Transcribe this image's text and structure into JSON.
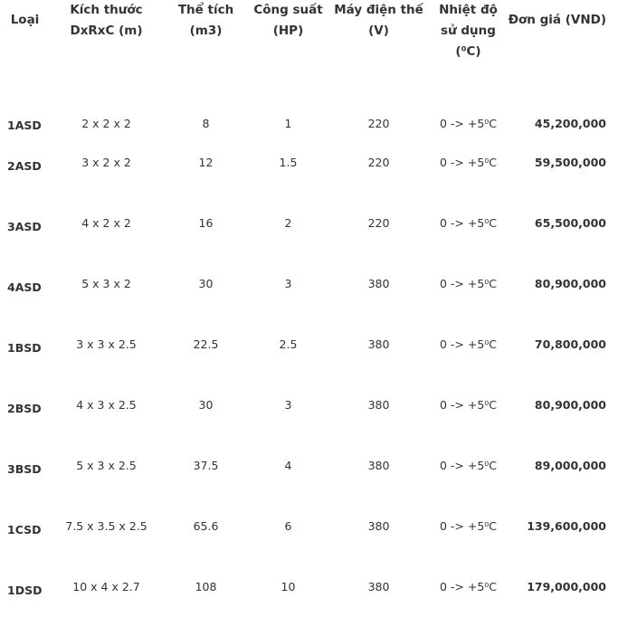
{
  "headers": [
    "Loại",
    "Kích thước DxRxC (m)",
    "Thể tích (m3)",
    "Công suất (HP)",
    "Máy điện thế (V)",
    "Nhiệt độ sử dụng (⁰C)",
    "Đơn giá (VND)"
  ],
  "rows": [
    [
      "1ASD",
      "2 x 2 x 2",
      "8",
      "1",
      "220",
      "0 -> +5⁰C",
      "45,200,000"
    ],
    [
      "2ASD",
      "3 x 2 x 2",
      "12",
      "1.5",
      "220",
      "0 -> +5⁰C",
      "59,500,000"
    ],
    [
      "3ASD",
      "4 x 2 x 2",
      "16",
      "2",
      "220",
      "0 -> +5⁰C",
      "65,500,000"
    ],
    [
      "4ASD",
      "5 x 3 x 2",
      "30",
      "3",
      "380",
      "0 -> +5⁰C",
      "80,900,000"
    ],
    [
      "1BSD",
      "3 x 3 x 2.5",
      "22.5",
      "2.5",
      "380",
      "0 -> +5⁰C",
      "70,800,000"
    ],
    [
      "2BSD",
      "4 x 3 x 2.5",
      "30",
      "3",
      "380",
      "0 -> +5⁰C",
      "80,900,000"
    ],
    [
      "3BSD",
      "5 x 3 x 2.5",
      "37.5",
      "4",
      "380",
      "0 -> +5⁰C",
      "89,000,000"
    ],
    [
      "1CSD",
      "7.5 x 3.5 x 2.5",
      "65.6",
      "6",
      "380",
      "0 -> +5⁰C",
      "139,600,000"
    ],
    [
      "1DSD",
      "10 x 4 x 2.7",
      "108",
      "10",
      "380",
      "0 -> +5⁰C",
      "179,000,000"
    ]
  ]
}
